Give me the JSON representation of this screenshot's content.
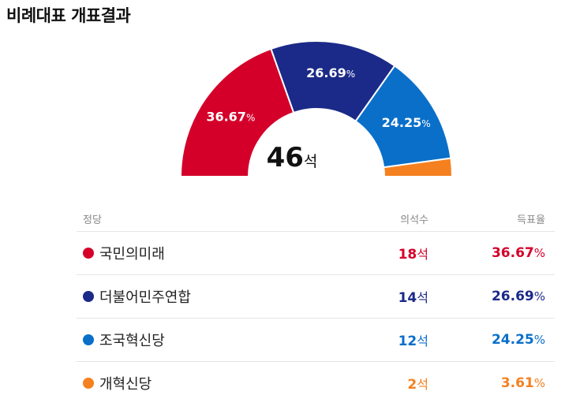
{
  "title": "비례대표 개표결과",
  "total": {
    "value": "46",
    "unit": "석"
  },
  "table": {
    "headers": {
      "party": "정당",
      "seats": "의석수",
      "rate": "득표율"
    },
    "seat_unit": "석",
    "pct_unit": "%"
  },
  "chart_data": {
    "type": "pie",
    "subtype": "half-donut",
    "total_seats": 46,
    "series": [
      {
        "name": "국민의미래",
        "seats": 18,
        "seats_label": "18",
        "vote_share": 36.67,
        "vote_label": "36.67",
        "color": "#d4002a",
        "show_label": true
      },
      {
        "name": "더불어민주연합",
        "seats": 14,
        "seats_label": "14",
        "vote_share": 26.69,
        "vote_label": "26.69",
        "color": "#1b2a88",
        "show_label": true
      },
      {
        "name": "조국혁신당",
        "seats": 12,
        "seats_label": "12",
        "vote_share": 24.25,
        "vote_label": "24.25",
        "color": "#0a6fc9",
        "show_label": true
      },
      {
        "name": "개혁신당",
        "seats": 2,
        "seats_label": "2",
        "vote_share": 3.61,
        "vote_label": "3.61",
        "color": "#f5801f",
        "show_label": false
      }
    ]
  }
}
